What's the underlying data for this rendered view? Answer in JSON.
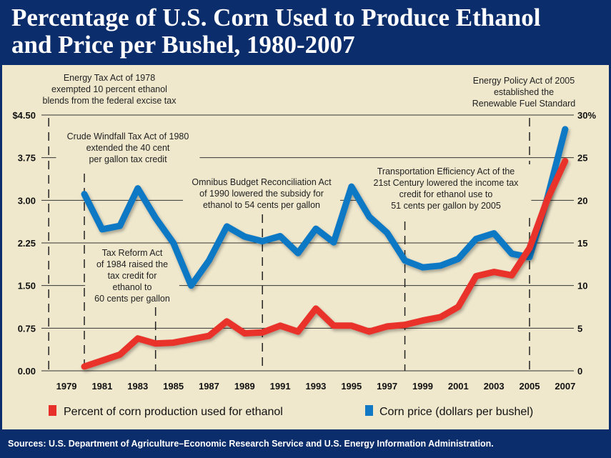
{
  "title": {
    "line1": "Percentage of U.S. Corn Used to Produce Ethanol",
    "line2": "and Price per Bushel, 1980-2007"
  },
  "sources": "Sources: U.S. Department of Agriculture–Economic Research Service and U.S. Energy Information Administration.",
  "colors": {
    "navy": "#0c2d6b",
    "background": "#efe8cd",
    "percent": "#e8302a",
    "price": "#1078c4"
  },
  "chart_data": {
    "type": "line",
    "x": [
      1980,
      1981,
      1982,
      1983,
      1984,
      1985,
      1986,
      1987,
      1988,
      1989,
      1990,
      1991,
      1992,
      1993,
      1994,
      1995,
      1996,
      1997,
      1998,
      1999,
      2000,
      2001,
      2002,
      2003,
      2004,
      2005,
      2006,
      2007
    ],
    "x_tick_labels": [
      "1979",
      "1981",
      "1983",
      "1985",
      "1987",
      "1989",
      "1991",
      "1993",
      "1995",
      "1997",
      "1999",
      "2001",
      "2003",
      "2005",
      "2007"
    ],
    "x_ticks": [
      1979,
      1981,
      1983,
      1985,
      1987,
      1989,
      1991,
      1993,
      1995,
      1997,
      1999,
      2001,
      2003,
      2005,
      2007
    ],
    "xlim": [
      1977.5,
      2008
    ],
    "left_axis": {
      "ylim": [
        0,
        4.5
      ],
      "tick_labels": [
        "0.00",
        "0.75",
        "1.50",
        "2.25",
        "3.00",
        "3.75",
        "$4.50"
      ]
    },
    "right_axis": {
      "ylim": [
        0,
        30
      ],
      "tick_labels": [
        "0",
        "5",
        "10",
        "15",
        "20",
        "25",
        "30%"
      ]
    },
    "grid": true,
    "legend": "bottom",
    "series": [
      {
        "name": "Percent of corn production used for ethanol",
        "axis": "right",
        "color": "#e8302a",
        "values": [
          0.5,
          1.2,
          1.9,
          3.8,
          3.2,
          3.3,
          3.7,
          4.1,
          5.8,
          4.4,
          4.5,
          5.3,
          4.6,
          7.3,
          5.3,
          5.3,
          4.6,
          5.2,
          5.4,
          5.9,
          6.3,
          7.5,
          11.1,
          11.6,
          11.2,
          14.4,
          20.1,
          24.6
        ]
      },
      {
        "name": "Corn price (dollars per bushel)",
        "axis": "left",
        "color": "#1078c4",
        "values": [
          3.11,
          2.49,
          2.55,
          3.21,
          2.69,
          2.25,
          1.5,
          1.94,
          2.54,
          2.36,
          2.28,
          2.37,
          2.07,
          2.5,
          2.26,
          3.24,
          2.71,
          2.43,
          1.94,
          1.82,
          1.85,
          1.97,
          2.32,
          2.42,
          2.06,
          2.0,
          3.04,
          4.25
        ]
      }
    ],
    "annotations": [
      {
        "year": 1978,
        "lines": [
          "Energy Tax Act of 1978",
          "exempted 10 percent ethanol",
          "blends from the federal excise tax"
        ]
      },
      {
        "year": 1980,
        "lines": [
          "Crude Windfall Tax Act of 1980",
          "extended the 40 cent",
          "per gallon tax credit"
        ]
      },
      {
        "year": 1984,
        "lines": [
          "Tax Reform Act",
          "of 1984 raised the",
          "tax credit for",
          "ethanol to",
          "60 cents per gallon"
        ]
      },
      {
        "year": 1990,
        "lines": [
          "Omnibus Budget Reconciliation Act",
          "of 1990 lowered the subsidy for",
          "ethanol to 54 cents per gallon"
        ]
      },
      {
        "year": 1998,
        "lines": [
          "Transportation Efficiency Act of the",
          "21st Century lowered the income tax",
          "credit for ethanol use to",
          "51 cents per gallon by 2005"
        ]
      },
      {
        "year": 2005,
        "lines": [
          "Energy Policy Act of 2005",
          "established the",
          "Renewable Fuel Standard"
        ]
      }
    ]
  }
}
